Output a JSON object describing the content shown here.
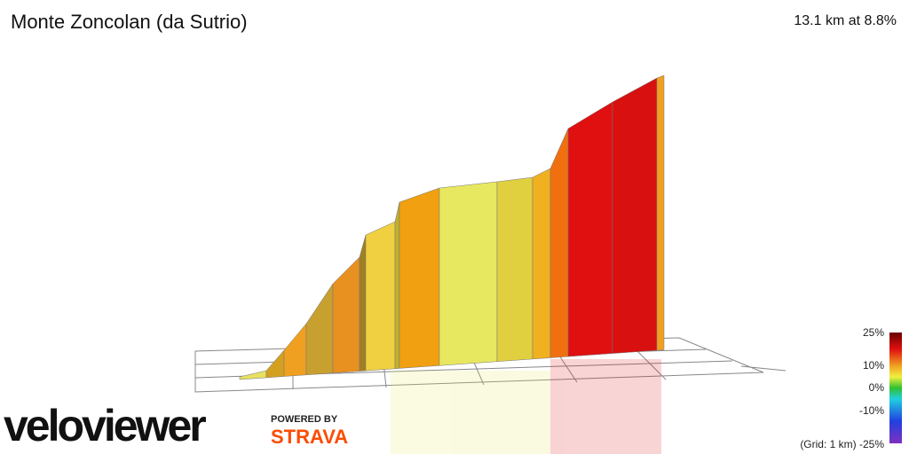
{
  "header": {
    "title": "Monte Zoncolan (da Sutrio)",
    "stats": "13.1 km at 8.8%"
  },
  "legend": {
    "labels": [
      "25%",
      "10%",
      "0%",
      "-10%",
      "(Grid: 1 km) -25%"
    ]
  },
  "branding": {
    "logo": "veloviewer",
    "powered": "POWERED BY",
    "strava": "STRAVA"
  }
}
